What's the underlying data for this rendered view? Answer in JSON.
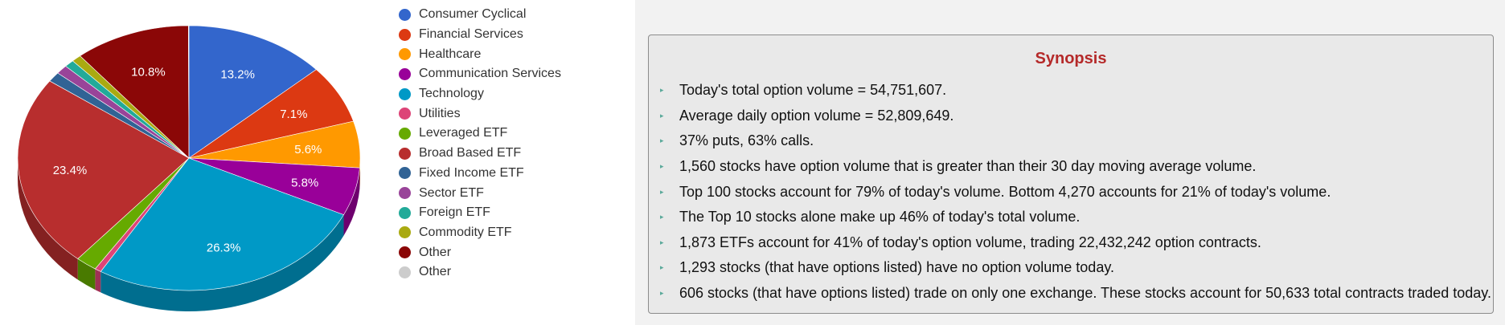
{
  "chart_data": {
    "type": "pie",
    "title": "",
    "slices": [
      {
        "label": "Consumer Cyclical",
        "value": 13.2,
        "color": "#3366cc",
        "data_label": "13.2%"
      },
      {
        "label": "Financial Services",
        "value": 7.1,
        "color": "#dc3912",
        "data_label": "7.1%"
      },
      {
        "label": "Healthcare",
        "value": 5.6,
        "color": "#ff9900",
        "data_label": "5.6%"
      },
      {
        "label": "Communication Services",
        "value": 5.8,
        "color": "#990099",
        "data_label": "5.8%"
      },
      {
        "label": "Technology",
        "value": 26.3,
        "color": "#0099c6",
        "data_label": "26.3%"
      },
      {
        "label": "Utilities",
        "value": 0.6,
        "color": "#dd4477",
        "data_label": ""
      },
      {
        "label": "Leveraged ETF",
        "value": 2.0,
        "color": "#66aa00",
        "data_label": ""
      },
      {
        "label": "Broad Based ETF",
        "value": 23.4,
        "color": "#b82e2e",
        "data_label": "23.4%"
      },
      {
        "label": "Fixed Income ETF",
        "value": 1.2,
        "color": "#316395",
        "data_label": ""
      },
      {
        "label": "Sector ETF",
        "value": 1.1,
        "color": "#994499",
        "data_label": ""
      },
      {
        "label": "Foreign ETF",
        "value": 0.9,
        "color": "#22aa99",
        "data_label": ""
      },
      {
        "label": "Commodity ETF",
        "value": 0.9,
        "color": "#aaaa11",
        "data_label": ""
      },
      {
        "label": "Other",
        "value": 10.8,
        "color": "#8b0707",
        "data_label": "10.8%"
      },
      {
        "label": "Other",
        "value": 0.05,
        "color": "#cccccc",
        "data_label": ""
      }
    ],
    "legend_position": "right",
    "style": "3d"
  },
  "synopsis": {
    "title": "Synopsis",
    "items": [
      "Today's total option volume = 54,751,607.",
      "Average daily option volume = 52,809,649.",
      "37% puts, 63% calls.",
      "1,560 stocks have option volume that is greater than their 30 day moving average volume.",
      "Top 100 stocks account for 79% of today's volume. Bottom 4,270 accounts for 21% of today's volume.",
      "The Top 10 stocks alone make up 46% of today's total volume.",
      "1,873 ETFs account for 41% of today's option volume, trading 22,432,242 option contracts.",
      "1,293 stocks (that have options listed) have no option volume today.",
      "606 stocks (that have options listed) trade on only one exchange. These stocks account for 50,633 total contracts traded today."
    ]
  }
}
